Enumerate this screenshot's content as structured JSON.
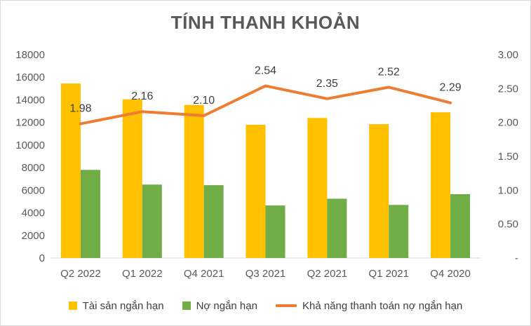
{
  "chart_data": {
    "type": "bar",
    "title": "TÍNH THANH KHOẢN",
    "categories": [
      "Q2 2022",
      "Q1 2022",
      "Q4 2021",
      "Q3 2021",
      "Q2 2021",
      "Q1 2021",
      "Q4 2020"
    ],
    "series": [
      {
        "name": "Tài sản ngắn hạn",
        "type": "bar",
        "axis": "left",
        "color": "#FFC000",
        "values": [
          15450,
          14050,
          13550,
          11800,
          12400,
          11850,
          12900
        ]
      },
      {
        "name": "Nợ ngắn hạn",
        "type": "bar",
        "axis": "left",
        "color": "#70AD47",
        "values": [
          7800,
          6500,
          6450,
          4650,
          5250,
          4700,
          5650
        ]
      },
      {
        "name": "Khả năng thanh toán nợ ngắn hạn",
        "type": "line",
        "axis": "right",
        "color": "#ED7D31",
        "values": [
          1.98,
          2.16,
          2.1,
          2.54,
          2.35,
          2.52,
          2.29
        ],
        "labels": [
          "1.98",
          "2.16",
          "2.10",
          "2.54",
          "2.35",
          "2.52",
          "2.29"
        ]
      }
    ],
    "left_axis": {
      "ylim": [
        0,
        18000
      ],
      "ticks": [
        "0",
        "2000",
        "4000",
        "6000",
        "8000",
        "10000",
        "12000",
        "14000",
        "16000",
        "18000"
      ]
    },
    "right_axis": {
      "ylim": [
        0,
        3
      ],
      "ticks": [
        "-",
        "0.50",
        "1.00",
        "1.50",
        "2.00",
        "2.50",
        "3.00"
      ]
    },
    "grid": false,
    "legend_position": "bottom"
  }
}
